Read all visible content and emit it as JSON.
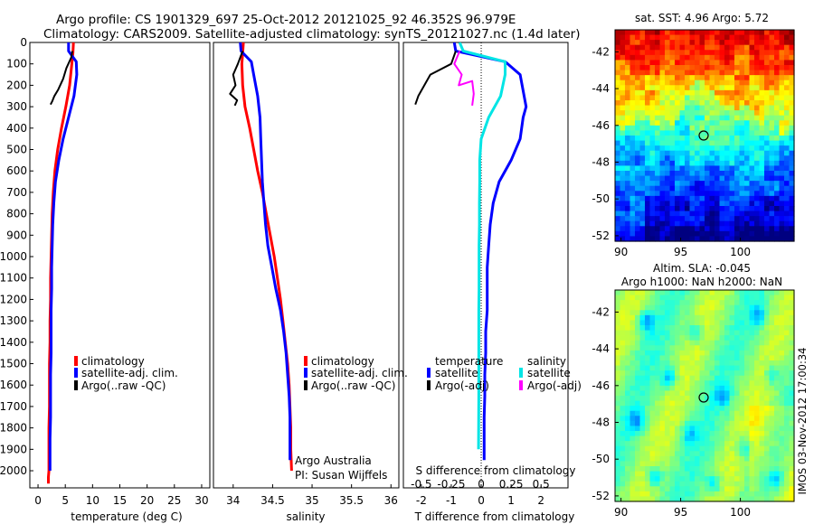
{
  "header": {
    "line1": "Argo profile: CS 1901329_697 25-Oct-2012 20121025_92 46.352S 96.979E",
    "line2": "Climatology: CARS2009. Satellite-adjusted climatology: synTS_20121027.nc (1.4d later)"
  },
  "colors": {
    "climatology": "#ff0000",
    "satellite": "#0000ff",
    "argo": "#000000",
    "satellite_salinity": "#00e5e5",
    "argo_salinity": "#ff00ff"
  },
  "panels": {
    "temperature": {
      "xlabel": "temperature (deg C)"
    },
    "salinity": {
      "xlabel": "salinity",
      "credit1": "Argo Australia",
      "credit2": "PI: Susan Wijffels"
    },
    "difference": {
      "xlabel": "T difference from climatology",
      "top_xlabel": "S difference from climatology",
      "legend_col1_title": "temperature",
      "legend_col2_title": "salinity"
    },
    "sst_map": {
      "title": "sat. SST: 4.96 Argo: 5.72"
    },
    "sla_map": {
      "title1": "Altim. SLA: -0.045",
      "title2": "Argo h1000: NaN h2000: NaN"
    }
  },
  "legend": {
    "climatology": "climatology",
    "satellite_adj": "satellite-adj. clim.",
    "argo_raw": "Argo(..raw -QC)",
    "satellite": "satellite",
    "argo_adj": "Argo(-adj)"
  },
  "footer_stamp": "IMOS 03-Nov-2012 17:00:34",
  "chart_data": [
    {
      "type": "line",
      "name": "temperature profile",
      "xlabel": "temperature (deg C)",
      "ylabel": "",
      "xlim": [
        -1.5,
        31.5
      ],
      "ylim": [
        2080,
        0
      ],
      "xticks": [
        0,
        5,
        10,
        15,
        20,
        25,
        30
      ],
      "yticks": [
        0,
        100,
        200,
        300,
        400,
        500,
        600,
        700,
        800,
        900,
        1000,
        1100,
        1200,
        1300,
        1400,
        1500,
        1600,
        1700,
        1800,
        1900,
        2000
      ],
      "series": [
        {
          "name": "climatology",
          "color": "#ff0000",
          "width": 3,
          "x": [
            6.5,
            6.4,
            6.2,
            5.8,
            5.1,
            4.3,
            3.6,
            3.1,
            2.8,
            2.6,
            2.5,
            2.4,
            2.3,
            2.3,
            2.2,
            2.2,
            2.1,
            2.1,
            2.1,
            2.0,
            2.0,
            2.0,
            1.9,
            1.9
          ],
          "y": [
            0,
            50,
            100,
            200,
            300,
            400,
            500,
            600,
            700,
            800,
            900,
            1000,
            1100,
            1200,
            1300,
            1400,
            1500,
            1600,
            1700,
            1800,
            1900,
            2000,
            2030,
            2060
          ]
        },
        {
          "name": "satellite-adj. clim.",
          "color": "#0000ff",
          "width": 3,
          "x": [
            5.6,
            5.6,
            7.0,
            7.1,
            6.6,
            5.6,
            4.6,
            3.8,
            3.2,
            2.9,
            2.7,
            2.6,
            2.5,
            2.5,
            2.4,
            2.4,
            2.4,
            2.3,
            2.3,
            2.3,
            2.2,
            2.2,
            2.2
          ],
          "y": [
            0,
            40,
            90,
            150,
            250,
            350,
            450,
            550,
            650,
            750,
            850,
            950,
            1050,
            1150,
            1250,
            1350,
            1450,
            1550,
            1650,
            1750,
            1850,
            1950,
            2000
          ]
        },
        {
          "name": "Argo(..raw -QC)",
          "color": "#000000",
          "width": 2,
          "x": [
            6.3,
            6.1,
            5.2,
            4.6,
            3.7,
            3.0,
            2.6,
            2.3
          ],
          "y": [
            40,
            70,
            120,
            170,
            220,
            250,
            275,
            290
          ]
        }
      ]
    },
    {
      "type": "line",
      "name": "salinity profile",
      "xlabel": "salinity",
      "ylabel": "",
      "xlim": [
        33.75,
        36.1
      ],
      "ylim": [
        2080,
        0
      ],
      "xticks": [
        34,
        34.5,
        35,
        35.5,
        36
      ],
      "xticklabels": [
        "34",
        "34.5",
        "35",
        "35.5",
        "36"
      ],
      "series": [
        {
          "name": "climatology",
          "color": "#ff0000",
          "width": 3,
          "x": [
            34.13,
            34.12,
            34.11,
            34.12,
            34.15,
            34.21,
            34.26,
            34.31,
            34.37,
            34.42,
            34.47,
            34.52,
            34.56,
            34.6,
            34.63,
            34.66,
            34.69,
            34.71,
            34.72,
            34.73,
            34.73,
            34.74
          ],
          "y": [
            0,
            50,
            100,
            200,
            300,
            400,
            500,
            600,
            700,
            800,
            900,
            1000,
            1100,
            1200,
            1300,
            1400,
            1500,
            1600,
            1700,
            1800,
            1900,
            2000
          ]
        },
        {
          "name": "satellite-adj. clim.",
          "color": "#0000ff",
          "width": 3,
          "x": [
            34.09,
            34.1,
            34.23,
            34.26,
            34.31,
            34.34,
            34.35,
            34.36,
            34.37,
            34.39,
            34.41,
            34.44,
            34.49,
            34.54,
            34.6,
            34.64,
            34.67,
            34.69,
            34.71,
            34.72,
            34.72
          ],
          "y": [
            0,
            40,
            90,
            150,
            250,
            350,
            450,
            550,
            650,
            750,
            850,
            950,
            1050,
            1150,
            1250,
            1350,
            1450,
            1550,
            1650,
            1750,
            1950
          ]
        },
        {
          "name": "Argo(..raw -QC)",
          "color": "#000000",
          "width": 2,
          "x": [
            34.12,
            34.06,
            34.0,
            34.03,
            33.96,
            34.05,
            34.02
          ],
          "y": [
            40,
            100,
            150,
            200,
            240,
            270,
            295
          ]
        }
      ]
    },
    {
      "type": "line",
      "name": "difference from climatology",
      "xlabel": "T difference from climatology",
      "top_xlabel": "S difference from climatology",
      "xlim": [
        -2.6,
        2.9
      ],
      "ylim": [
        2080,
        0
      ],
      "xticks": [
        -2,
        -1,
        0,
        1,
        2
      ],
      "top_xticks": [
        -0.5,
        -0.25,
        0,
        0.25,
        0.5
      ],
      "zero_line": true,
      "series": [
        {
          "name": "temperature satellite",
          "color": "#0000ff",
          "width": 3,
          "x": [
            -0.9,
            -0.85,
            0.8,
            1.3,
            1.5,
            1.4,
            1.3,
            1.0,
            0.6,
            0.4,
            0.3,
            0.25,
            0.2,
            0.2,
            0.2,
            0.15,
            0.15,
            0.12,
            0.12,
            0.1,
            0.1
          ],
          "y": [
            0,
            40,
            90,
            150,
            300,
            350,
            450,
            550,
            650,
            750,
            850,
            950,
            1050,
            1150,
            1250,
            1350,
            1450,
            1550,
            1650,
            1750,
            1950
          ]
        },
        {
          "name": "temperature Argo(-adj)",
          "color": "#000000",
          "width": 2,
          "x": [
            -0.85,
            -1.0,
            -1.7,
            -2.1,
            -2.2
          ],
          "y": [
            40,
            100,
            150,
            250,
            290
          ]
        },
        {
          "name": "salinity satellite",
          "color": "#00e5e5",
          "width": 3,
          "x": [
            -0.72,
            -0.6,
            0.8,
            0.8,
            0.65,
            0.25,
            0.0,
            -0.05,
            -0.05,
            -0.06,
            -0.06,
            -0.07,
            -0.07,
            -0.07,
            -0.08,
            -0.08,
            -0.08,
            -0.08,
            -0.08,
            -0.09
          ],
          "y": [
            0,
            40,
            90,
            150,
            250,
            350,
            450,
            550,
            650,
            750,
            850,
            950,
            1050,
            1150,
            1250,
            1350,
            1450,
            1550,
            1650,
            1900
          ]
        },
        {
          "name": "salinity Argo(-adj)",
          "color": "#ff00ff",
          "width": 2,
          "x": [
            -0.72,
            -0.9,
            -0.65,
            -0.75,
            -0.3,
            -0.25,
            -0.3
          ],
          "y": [
            40,
            100,
            150,
            200,
            180,
            240,
            295
          ]
        }
      ]
    },
    {
      "type": "heatmap",
      "name": "satellite SST map",
      "title": "sat. SST: 4.96 Argo: 5.72",
      "xlim": [
        89.5,
        104.5
      ],
      "ylim": [
        -52.3,
        -40.8
      ],
      "xticks": [
        90,
        95,
        100
      ],
      "yticks": [
        -42,
        -44,
        -46,
        -48,
        -50,
        -52
      ],
      "marker": {
        "lon": 96.98,
        "lat": -46.35
      }
    },
    {
      "type": "heatmap",
      "name": "altimetry SLA map",
      "title": "Altim. SLA: -0.045",
      "xlim": [
        89.5,
        104.5
      ],
      "ylim": [
        -52.3,
        -40.8
      ],
      "xticks": [
        90,
        95,
        100
      ],
      "yticks": [
        -42,
        -44,
        -46,
        -48,
        -50,
        -52
      ],
      "marker": {
        "lon": 96.98,
        "lat": -46.35
      }
    }
  ]
}
